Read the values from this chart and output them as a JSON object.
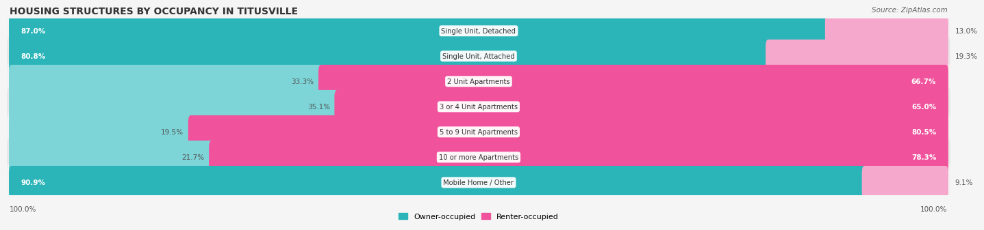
{
  "title": "HOUSING STRUCTURES BY OCCUPANCY IN TITUSVILLE",
  "source": "Source: ZipAtlas.com",
  "categories": [
    "Single Unit, Detached",
    "Single Unit, Attached",
    "2 Unit Apartments",
    "3 or 4 Unit Apartments",
    "5 to 9 Unit Apartments",
    "10 or more Apartments",
    "Mobile Home / Other"
  ],
  "owner_pct": [
    87.0,
    80.8,
    33.3,
    35.1,
    19.5,
    21.7,
    90.9
  ],
  "renter_pct": [
    13.0,
    19.3,
    66.7,
    65.0,
    80.5,
    78.3,
    9.1
  ],
  "owner_color_strong": "#2bb5b8",
  "owner_color_light": "#7dd5d8",
  "renter_color_strong": "#f0529c",
  "renter_color_light": "#f5a8cc",
  "row_bg_color_odd": "#f2f2f2",
  "row_bg_color_even": "#e8e8e8",
  "bg_color": "#f5f5f5",
  "title_fontsize": 10,
  "source_fontsize": 7.5,
  "label_fontsize": 7.5,
  "category_fontsize": 7.2,
  "figsize": [
    14.06,
    3.41
  ],
  "dpi": 100
}
